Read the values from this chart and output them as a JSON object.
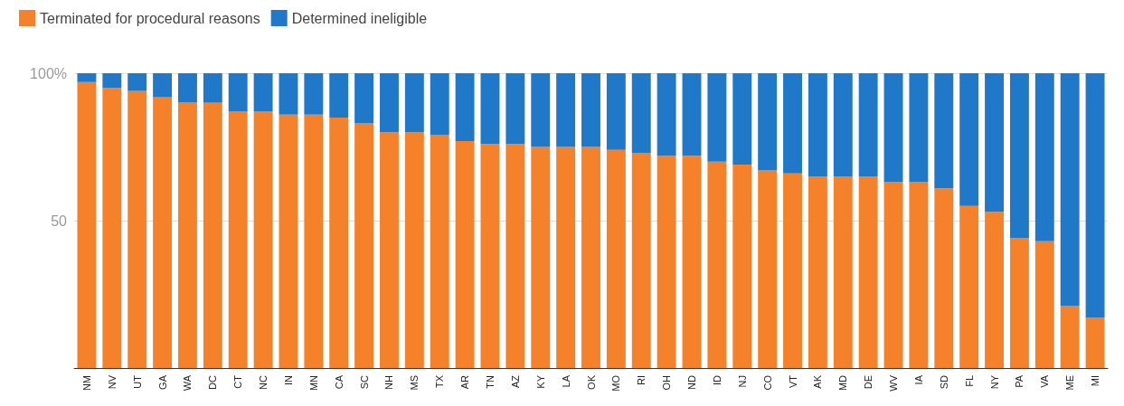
{
  "chart_data": {
    "type": "bar",
    "stacked": true,
    "categories": [
      "NM",
      "NV",
      "UT",
      "GA",
      "WA",
      "DC",
      "CT",
      "NC",
      "IN",
      "MN",
      "CA",
      "SC",
      "NH",
      "MS",
      "TX",
      "AR",
      "TN",
      "AZ",
      "KY",
      "LA",
      "OK",
      "MO",
      "RI",
      "OH",
      "ND",
      "ID",
      "NJ",
      "CO",
      "VT",
      "AK",
      "MD",
      "DE",
      "WV",
      "IA",
      "SD",
      "FL",
      "NY",
      "PA",
      "VA",
      "ME",
      "MI"
    ],
    "series": [
      {
        "name": "Terminated for procedural reasons",
        "color": "#f5822a",
        "values": [
          97,
          95,
          94,
          92,
          90,
          90,
          87,
          87,
          86,
          86,
          85,
          83,
          80,
          80,
          79,
          77,
          76,
          76,
          75,
          75,
          75,
          74,
          73,
          72,
          72,
          70,
          69,
          67,
          66,
          65,
          65,
          65,
          63,
          63,
          61,
          55,
          53,
          44,
          43,
          21,
          17
        ]
      },
      {
        "name": "Determined ineligible",
        "color": "#1f78c8",
        "values": [
          3,
          5,
          6,
          8,
          10,
          10,
          13,
          13,
          14,
          14,
          15,
          17,
          20,
          20,
          21,
          23,
          24,
          24,
          25,
          25,
          25,
          26,
          27,
          28,
          28,
          30,
          31,
          33,
          34,
          35,
          35,
          35,
          37,
          37,
          39,
          45,
          47,
          56,
          57,
          79,
          83
        ]
      }
    ],
    "ylim": [
      0,
      100
    ],
    "yticks": [
      {
        "value": 0,
        "label": null
      },
      {
        "value": 50,
        "label": "50"
      },
      {
        "value": 100,
        "label": "100%"
      }
    ],
    "grid": "y",
    "legend": "top left"
  }
}
